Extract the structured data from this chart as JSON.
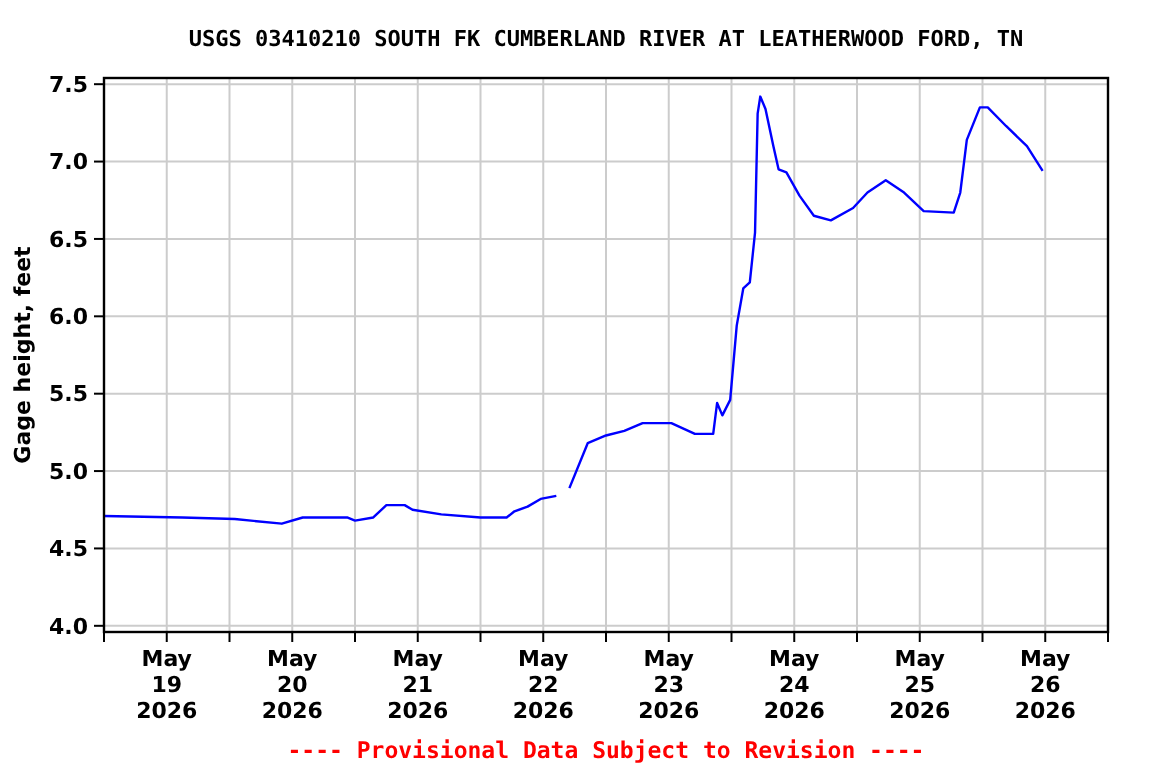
{
  "chart_data": {
    "type": "line",
    "title": "USGS 03410210 SOUTH FK CUMBERLAND RIVER AT LEATHERWOOD FORD, TN",
    "ylabel": "Gage height, feet",
    "annotations": [
      "---- Provisional Data Subject to Revision ----"
    ],
    "x": [
      "2026-05-19T00:00",
      "2026-05-19T15:00",
      "2026-05-20T01:00",
      "2026-05-20T10:00",
      "2026-05-20T14:00",
      "2026-05-20T22:30",
      "2026-05-21T00:00",
      "2026-05-21T03:30",
      "2026-05-21T06:00",
      "2026-05-21T09:30",
      "2026-05-21T11:00",
      "2026-05-21T16:30",
      "2026-05-22T00:00",
      "2026-05-22T05:00",
      "2026-05-22T06:30",
      "2026-05-22T09:00",
      "2026-05-22T11:30",
      "2026-05-22T14:30",
      "2026-05-22T15:45",
      "2026-05-22T17:00",
      "2026-05-22T20:30",
      "2026-05-23T00:00",
      "2026-05-23T03:30",
      "2026-05-23T07:00",
      "2026-05-23T12:30",
      "2026-05-23T17:00",
      "2026-05-23T20:30",
      "2026-05-23T21:15",
      "2026-05-23T22:15",
      "2026-05-23T23:45",
      "2026-05-24T01:00",
      "2026-05-24T02:15",
      "2026-05-24T03:30",
      "2026-05-24T04:30",
      "2026-05-24T05:00",
      "2026-05-24T05:30",
      "2026-05-24T06:30",
      "2026-05-24T08:00",
      "2026-05-24T09:00",
      "2026-05-24T10:30",
      "2026-05-24T13:00",
      "2026-05-24T15:45",
      "2026-05-24T19:00",
      "2026-05-24T23:15",
      "2026-05-25T02:00",
      "2026-05-25T05:30",
      "2026-05-25T09:00",
      "2026-05-25T12:45",
      "2026-05-25T18:30",
      "2026-05-25T19:45",
      "2026-05-25T21:00",
      "2026-05-25T23:30",
      "2026-05-26T01:00",
      "2026-05-26T04:30",
      "2026-05-26T08:30",
      "2026-05-26T11:30"
    ],
    "series": [
      {
        "color": "#0000ff",
        "values": [
          4.71,
          4.7,
          4.69,
          4.66,
          4.7,
          4.7,
          4.68,
          4.7,
          4.78,
          4.78,
          4.75,
          4.72,
          4.7,
          4.7,
          4.74,
          4.77,
          4.82,
          4.84,
          null,
          4.89,
          5.18,
          5.23,
          5.26,
          5.31,
          5.31,
          5.24,
          5.24,
          5.44,
          5.36,
          5.46,
          5.94,
          6.18,
          6.22,
          6.54,
          7.31,
          7.42,
          7.34,
          7.1,
          6.95,
          6.93,
          6.78,
          6.65,
          6.62,
          6.7,
          6.8,
          6.88,
          6.8,
          6.68,
          6.67,
          6.8,
          7.14,
          7.35,
          7.35,
          7.23,
          7.1,
          6.94
        ]
      }
    ],
    "xlim": [
      "2026-05-19T00:00",
      "2026-05-27T00:00"
    ],
    "xticks": [
      {
        "value": "2026-05-19T00:00",
        "label": null
      },
      {
        "value": "2026-05-19T12:00",
        "label": "May 19 2026"
      },
      {
        "value": "2026-05-20T00:00",
        "label": null
      },
      {
        "value": "2026-05-20T12:00",
        "label": "May 20 2026"
      },
      {
        "value": "2026-05-21T00:00",
        "label": null
      },
      {
        "value": "2026-05-21T12:00",
        "label": "May 21 2026"
      },
      {
        "value": "2026-05-22T00:00",
        "label": null
      },
      {
        "value": "2026-05-22T12:00",
        "label": "May 22 2026"
      },
      {
        "value": "2026-05-23T00:00",
        "label": null
      },
      {
        "value": "2026-05-23T12:00",
        "label": "May 23 2026"
      },
      {
        "value": "2026-05-24T00:00",
        "label": null
      },
      {
        "value": "2026-05-24T12:00",
        "label": "May 24 2026"
      },
      {
        "value": "2026-05-25T00:00",
        "label": null
      },
      {
        "value": "2026-05-25T12:00",
        "label": "May 25 2026"
      },
      {
        "value": "2026-05-26T00:00",
        "label": null
      },
      {
        "value": "2026-05-26T12:00",
        "label": "May 26 2026"
      },
      {
        "value": "2026-05-27T00:00",
        "label": null
      }
    ],
    "ylim": [
      3.96,
      7.54
    ],
    "yticks": [
      {
        "value": 4,
        "label": "4.0"
      },
      {
        "value": 4.5,
        "label": "4.5"
      },
      {
        "value": 5,
        "label": "5.0"
      },
      {
        "value": 5.5,
        "label": "5.5"
      },
      {
        "value": 6,
        "label": "6.0"
      },
      {
        "value": 6.5,
        "label": "6.5"
      },
      {
        "value": 7,
        "label": "7.0"
      },
      {
        "value": 7.5,
        "label": "7.5"
      }
    ],
    "grid": true
  }
}
